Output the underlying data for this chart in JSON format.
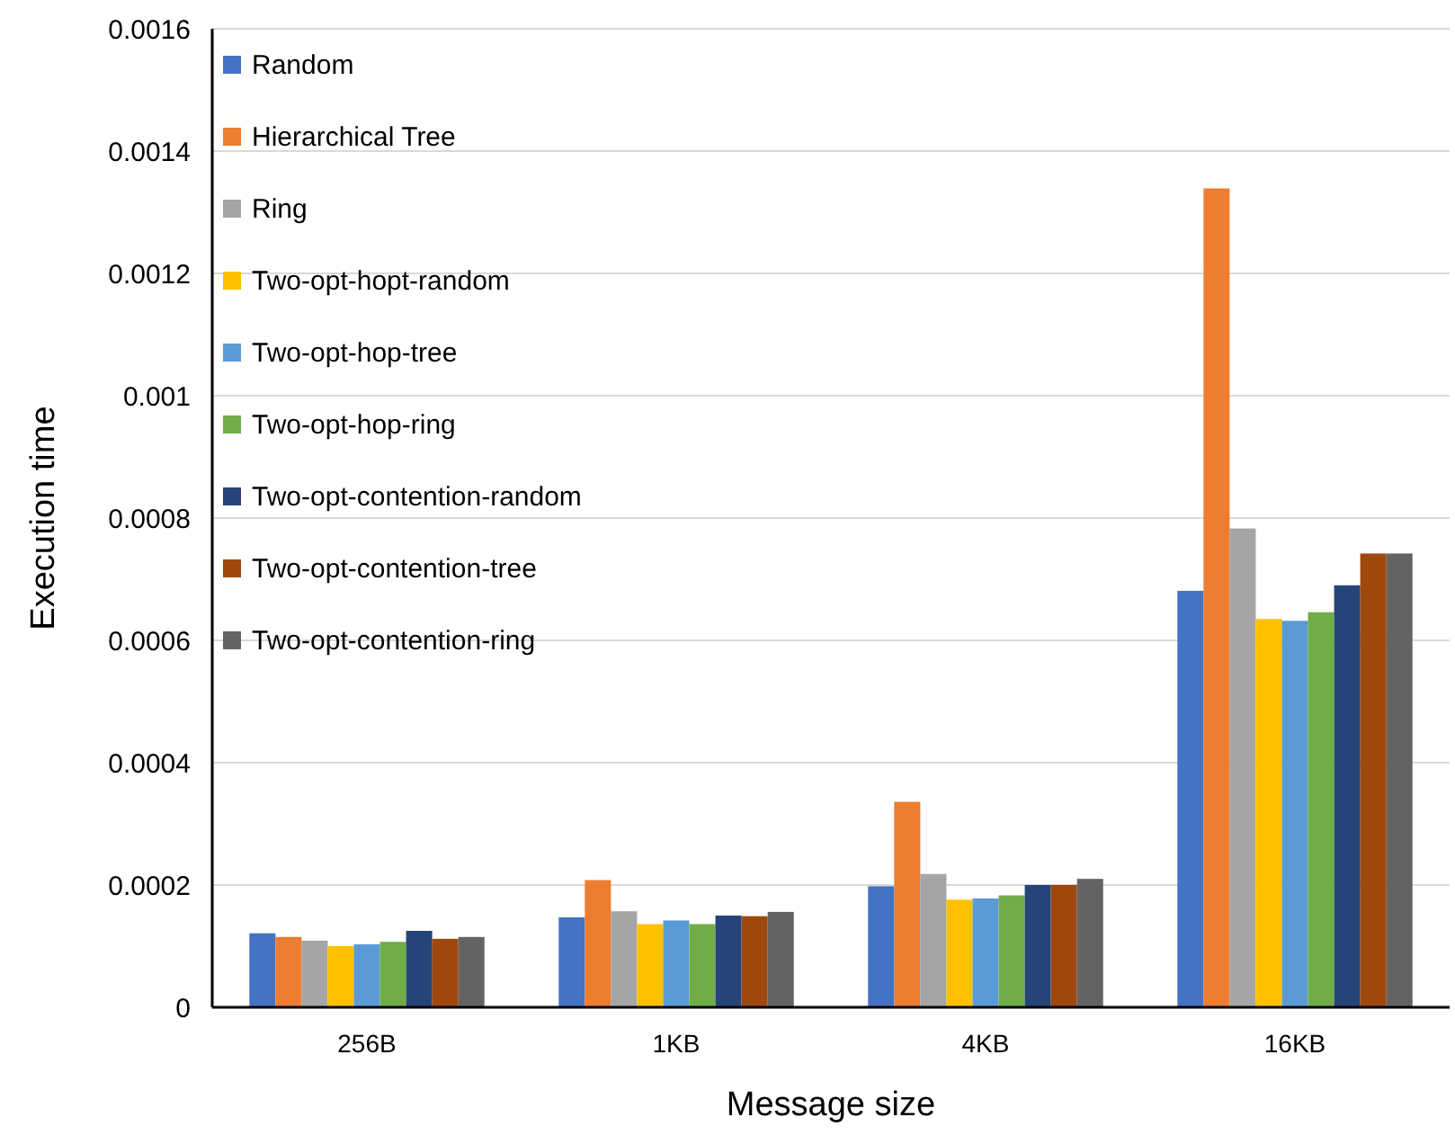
{
  "chart_data": {
    "type": "bar",
    "xlabel": "Message size",
    "ylabel": "Execution time",
    "categories": [
      "256B",
      "1KB",
      "4KB",
      "16KB"
    ],
    "series": [
      {
        "name": "Random",
        "color": "#4472c4",
        "values": [
          0.000121,
          0.000147,
          0.000198,
          0.000681
        ]
      },
      {
        "name": "Hierarchical Tree",
        "color": "#ed7d31",
        "values": [
          0.000115,
          0.000208,
          0.000336,
          0.001339
        ]
      },
      {
        "name": "Ring",
        "color": "#a5a5a5",
        "values": [
          0.000109,
          0.000157,
          0.000218,
          0.000783
        ]
      },
      {
        "name": "Two-opt-hopt-random",
        "color": "#ffc000",
        "values": [
          0.0001,
          0.000136,
          0.000176,
          0.000635
        ]
      },
      {
        "name": "Two-opt-hop-tree",
        "color": "#5b9bd5",
        "values": [
          0.000103,
          0.000142,
          0.000178,
          0.000632
        ]
      },
      {
        "name": "Two-opt-hop-ring",
        "color": "#70ad47",
        "values": [
          0.000107,
          0.000136,
          0.000183,
          0.000646
        ]
      },
      {
        "name": "Two-opt-contention-random",
        "color": "#264478",
        "values": [
          0.000125,
          0.00015,
          0.0002,
          0.00069
        ]
      },
      {
        "name": "Two-opt-contention-tree",
        "color": "#9e480e",
        "values": [
          0.000112,
          0.000149,
          0.0002,
          0.000742
        ]
      },
      {
        "name": "Two-opt-contention-ring",
        "color": "#636363",
        "values": [
          0.000115,
          0.000156,
          0.00021,
          0.000742
        ]
      }
    ],
    "ylim": [
      0,
      0.0016
    ],
    "yticks": [
      0,
      0.0002,
      0.0004,
      0.0006,
      0.0008,
      0.001,
      0.0012,
      0.0014,
      0.0016
    ],
    "grid": "y",
    "legend": "top left"
  }
}
